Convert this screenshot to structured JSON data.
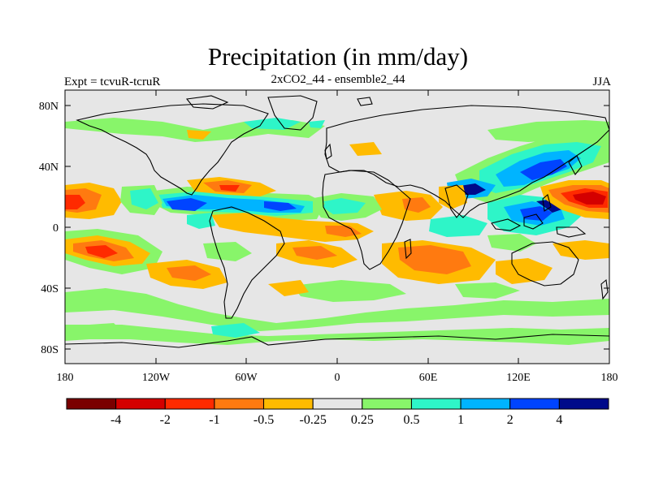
{
  "title": "Precipitation (in mm/day)",
  "subtitle": "2xCO2_44 - ensemble2_44",
  "left_label": "Expt = tcvuR-tcruR",
  "right_label": "JJA",
  "lat_ticks": [
    "80N",
    "40N",
    "0",
    "40S",
    "80S"
  ],
  "lon_ticks": [
    "180",
    "120W",
    "60W",
    "0",
    "60E",
    "120E",
    "180"
  ],
  "colorbar": {
    "colors": [
      "#7a0000",
      "#d40000",
      "#ff2a00",
      "#ff7a10",
      "#ffbb00",
      "#e6e6e6",
      "#88f56a",
      "#2ef5c8",
      "#00b4ff",
      "#0044ff",
      "#000a8a"
    ],
    "labels": [
      "-4",
      "-2",
      "-1",
      "-0.5",
      "-0.25",
      "0.25",
      "0.5",
      "1",
      "2",
      "4"
    ]
  }
}
